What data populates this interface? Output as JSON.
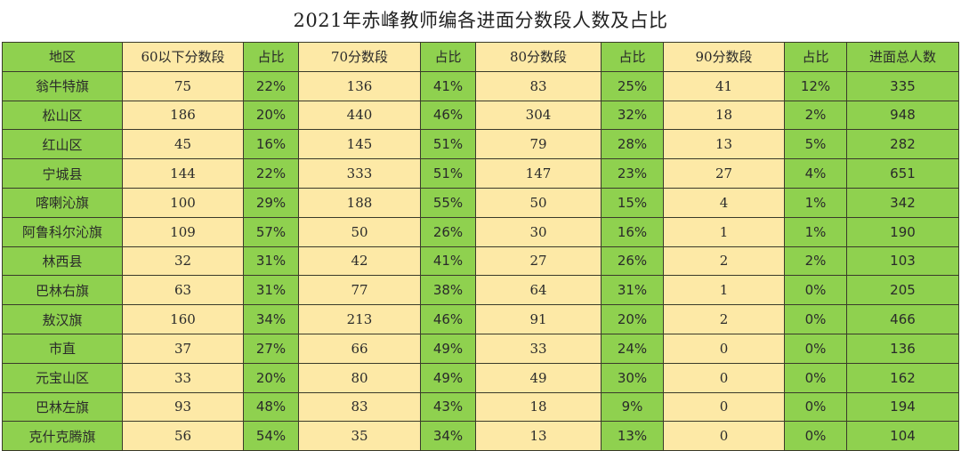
{
  "chart_data": {
    "type": "table",
    "title": "2021年赤峰教师编各进面分数段人数及占比",
    "columns": [
      "地区",
      "60以下分数段",
      "占比",
      "70分数段",
      "占比",
      "80分数段",
      "占比",
      "90分数段",
      "占比",
      "进面总人数"
    ],
    "rows": [
      [
        "翁牛特旗",
        "75",
        "22%",
        "136",
        "41%",
        "83",
        "25%",
        "41",
        "12%",
        "335"
      ],
      [
        "松山区",
        "186",
        "20%",
        "440",
        "46%",
        "304",
        "32%",
        "18",
        "2%",
        "948"
      ],
      [
        "红山区",
        "45",
        "16%",
        "145",
        "51%",
        "79",
        "28%",
        "13",
        "5%",
        "282"
      ],
      [
        "宁城县",
        "144",
        "22%",
        "333",
        "51%",
        "147",
        "23%",
        "27",
        "4%",
        "651"
      ],
      [
        "喀喇沁旗",
        "100",
        "29%",
        "188",
        "55%",
        "50",
        "15%",
        "4",
        "1%",
        "342"
      ],
      [
        "阿鲁科尔沁旗",
        "109",
        "57%",
        "50",
        "26%",
        "30",
        "16%",
        "1",
        "1%",
        "190"
      ],
      [
        "林西县",
        "32",
        "31%",
        "42",
        "41%",
        "27",
        "26%",
        "2",
        "2%",
        "103"
      ],
      [
        "巴林右旗",
        "63",
        "31%",
        "77",
        "38%",
        "64",
        "31%",
        "1",
        "0%",
        "205"
      ],
      [
        "敖汉旗",
        "160",
        "34%",
        "213",
        "46%",
        "91",
        "20%",
        "2",
        "0%",
        "466"
      ],
      [
        "市直",
        "37",
        "27%",
        "66",
        "49%",
        "33",
        "24%",
        "0",
        "0%",
        "136"
      ],
      [
        "元宝山区",
        "33",
        "20%",
        "80",
        "49%",
        "49",
        "30%",
        "0",
        "0%",
        "162"
      ],
      [
        "巴林左旗",
        "93",
        "48%",
        "83",
        "43%",
        "18",
        "9%",
        "0",
        "0%",
        "194"
      ],
      [
        "克什克腾旗",
        "56",
        "54%",
        "35",
        "34%",
        "13",
        "13%",
        "0",
        "0%",
        "104"
      ]
    ],
    "colors": {
      "header": "#8fd14f",
      "region_column": "#8fd14f",
      "percent_columns": "#8fd14f",
      "count_columns": "#fde9a6",
      "total_column": "#8fd14f",
      "border": "#3a3a2a"
    }
  }
}
